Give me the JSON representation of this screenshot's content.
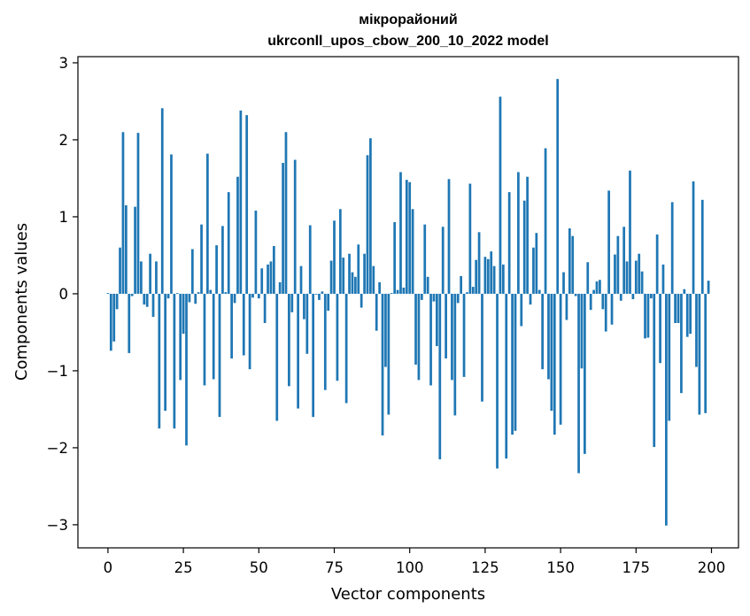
{
  "chart_data": {
    "type": "bar",
    "title_line1": "мікрорайоний",
    "title_line2": "ukrconll_upos_cbow_200_10_2022 model",
    "xlabel": "Vector components",
    "ylabel": "Components values",
    "xlim": [
      -9.95,
      208.95
    ],
    "ylim": [
      -3.3,
      3.08
    ],
    "xticks": [
      0,
      25,
      50,
      75,
      100,
      125,
      150,
      175,
      200
    ],
    "xtick_labels": [
      "0",
      "25",
      "50",
      "75",
      "100",
      "125",
      "150",
      "175",
      "200"
    ],
    "yticks": [
      -3,
      -2,
      -1,
      0,
      1,
      2,
      3
    ],
    "ytick_labels": [
      "−3",
      "−2",
      "−1",
      "0",
      "1",
      "2",
      "3"
    ],
    "bar_color": "#1f77b4",
    "x": [
      0,
      1,
      2,
      3,
      4,
      5,
      6,
      7,
      8,
      9,
      10,
      11,
      12,
      13,
      14,
      15,
      16,
      17,
      18,
      19,
      20,
      21,
      22,
      23,
      24,
      25,
      26,
      27,
      28,
      29,
      30,
      31,
      32,
      33,
      34,
      35,
      36,
      37,
      38,
      39,
      40,
      41,
      42,
      43,
      44,
      45,
      46,
      47,
      48,
      49,
      50,
      51,
      52,
      53,
      54,
      55,
      56,
      57,
      58,
      59,
      60,
      61,
      62,
      63,
      64,
      65,
      66,
      67,
      68,
      69,
      70,
      71,
      72,
      73,
      74,
      75,
      76,
      77,
      78,
      79,
      80,
      81,
      82,
      83,
      84,
      85,
      86,
      87,
      88,
      89,
      90,
      91,
      92,
      93,
      94,
      95,
      96,
      97,
      98,
      99,
      100,
      101,
      102,
      103,
      104,
      105,
      106,
      107,
      108,
      109,
      110,
      111,
      112,
      113,
      114,
      115,
      116,
      117,
      118,
      119,
      120,
      121,
      122,
      123,
      124,
      125,
      126,
      127,
      128,
      129,
      130,
      131,
      132,
      133,
      134,
      135,
      136,
      137,
      138,
      139,
      140,
      141,
      142,
      143,
      144,
      145,
      146,
      147,
      148,
      149,
      150,
      151,
      152,
      153,
      154,
      155,
      156,
      157,
      158,
      159,
      160,
      161,
      162,
      163,
      164,
      165,
      166,
      167,
      168,
      169,
      170,
      171,
      172,
      173,
      174,
      175,
      176,
      177,
      178,
      179,
      180,
      181,
      182,
      183,
      184,
      185,
      186,
      187,
      188,
      189,
      190,
      191,
      192,
      193,
      194,
      195,
      196,
      197,
      198,
      199
    ],
    "values": [
      0.01,
      -0.74,
      -0.62,
      -0.2,
      0.6,
      2.1,
      1.15,
      -0.77,
      -0.03,
      1.13,
      2.09,
      0.42,
      -0.14,
      -0.17,
      0.52,
      -0.3,
      0.42,
      -1.75,
      2.41,
      -1.52,
      -0.06,
      1.81,
      -1.75,
      0.01,
      -1.12,
      -0.52,
      -1.97,
      -0.11,
      0.58,
      -0.13,
      0.02,
      0.9,
      -1.19,
      1.82,
      0.05,
      -1.11,
      0.63,
      -1.6,
      0.88,
      0.02,
      1.32,
      -0.84,
      -0.12,
      1.52,
      2.38,
      -0.8,
      2.32,
      -0.98,
      -0.05,
      1.08,
      -0.06,
      0.33,
      -0.38,
      0.38,
      0.42,
      0.62,
      -1.65,
      0.15,
      1.7,
      2.1,
      -1.2,
      -0.24,
      1.74,
      -1.49,
      0.36,
      -0.33,
      -0.78,
      0.89,
      -1.6,
      -0.01,
      -0.08,
      0.03,
      -1.25,
      -0.22,
      0.43,
      0.95,
      -1.13,
      1.1,
      0.47,
      -1.42,
      0.52,
      0.28,
      0.22,
      0.64,
      -0.18,
      0.52,
      1.8,
      2.02,
      0.36,
      -0.48,
      0.15,
      -1.84,
      -0.95,
      -1.57,
      0.01,
      0.93,
      0.05,
      1.58,
      0.08,
      1.48,
      1.45,
      1.1,
      -0.92,
      -1.12,
      -0.08,
      0.9,
      0.22,
      -1.19,
      -0.1,
      -0.68,
      -2.15,
      0.87,
      -0.84,
      1.49,
      -1.12,
      -1.58,
      -0.12,
      0.23,
      -1.08,
      0.02,
      1.43,
      0.09,
      0.44,
      0.8,
      -1.4,
      0.48,
      0.45,
      0.55,
      0.36,
      -2.27,
      2.56,
      0.38,
      -2.14,
      1.32,
      -1.83,
      -1.78,
      1.58,
      -0.42,
      1.21,
      1.52,
      -0.14,
      0.6,
      0.79,
      0.05,
      -0.98,
      1.89,
      -1.11,
      -1.52,
      -1.83,
      2.79,
      -1.7,
      0.28,
      -0.34,
      0.85,
      0.75,
      -0.03,
      -2.33,
      -0.97,
      -2.08,
      0.41,
      -0.21,
      0.05,
      0.16,
      0.18,
      -0.2,
      -0.49,
      1.34,
      -0.4,
      0.51,
      0.75,
      -0.09,
      0.87,
      0.42,
      1.6,
      -0.07,
      0.43,
      0.52,
      0.29,
      -0.58,
      -0.57,
      -0.06,
      -1.99,
      0.77,
      -0.9,
      0.38,
      -3.01,
      -1.65,
      1.19,
      -0.38,
      -0.38,
      -1.29,
      0.06,
      -0.56,
      -0.52,
      1.46,
      -0.95,
      -1.57,
      1.22,
      -1.55,
      0.17
    ]
  }
}
